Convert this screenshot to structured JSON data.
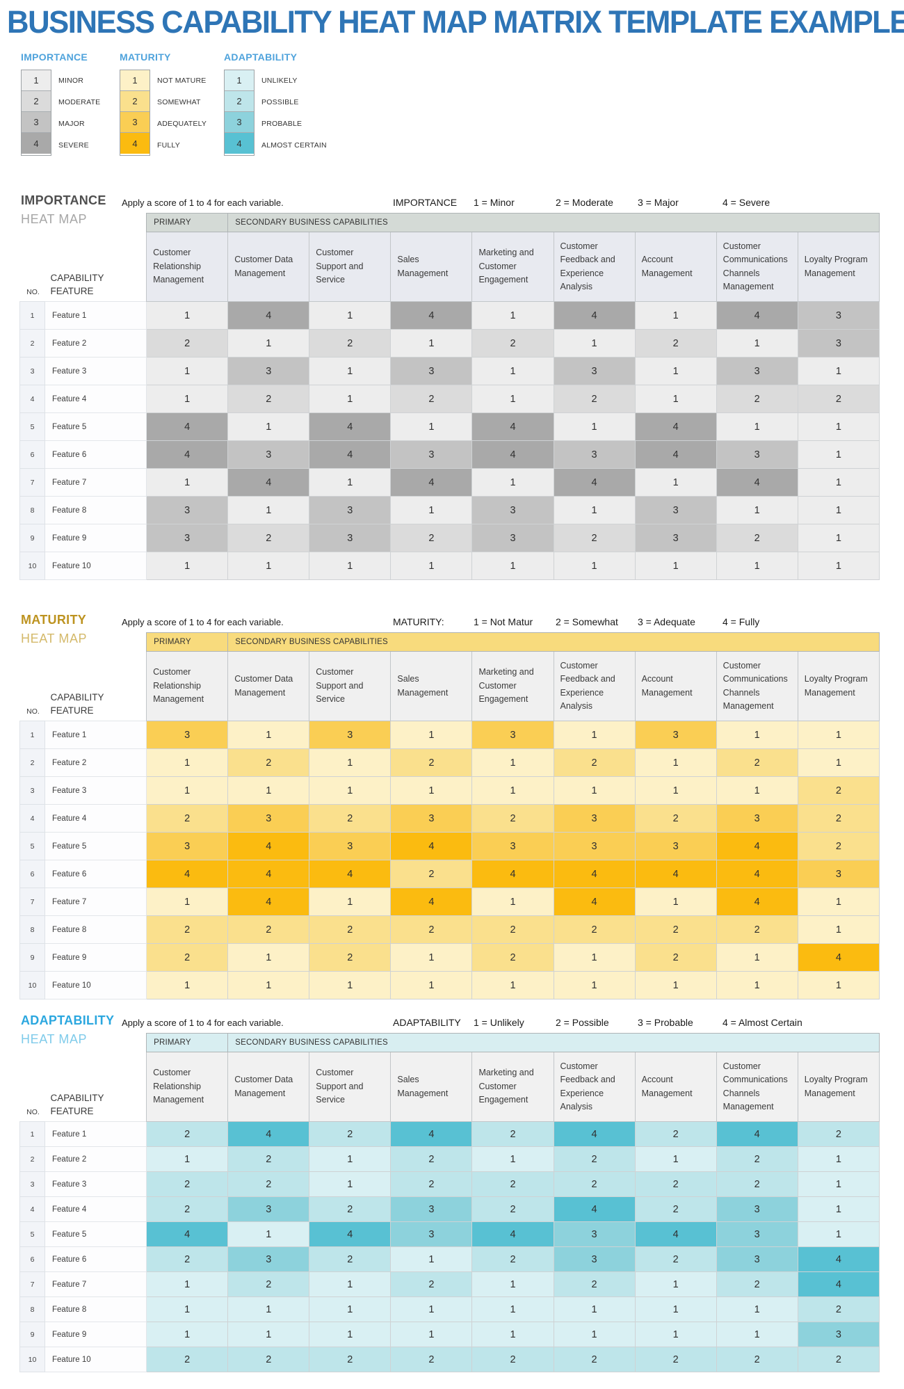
{
  "title": "BUSINESS CAPABILITY HEAT MAP MATRIX TEMPLATE EXAMPLE",
  "legends": [
    {
      "name": "IMPORTANCE",
      "items": [
        {
          "score": "1",
          "label": "MINOR",
          "color": "#EDEDED"
        },
        {
          "score": "2",
          "label": "MODERATE",
          "color": "#DBDBDB"
        },
        {
          "score": "3",
          "label": "MAJOR",
          "color": "#C3C3C3"
        },
        {
          "score": "4",
          "label": "SEVERE",
          "color": "#A9A9A9"
        }
      ]
    },
    {
      "name": "MATURITY",
      "items": [
        {
          "score": "1",
          "label": "NOT MATURE",
          "color": "#FDF1C7"
        },
        {
          "score": "2",
          "label": "SOMEWHAT",
          "color": "#FAE08D"
        },
        {
          "score": "3",
          "label": "ADEQUATELY",
          "color": "#FACE54"
        },
        {
          "score": "4",
          "label": "FULLY",
          "color": "#FBBB10"
        }
      ]
    },
    {
      "name": "ADAPTABILITY",
      "items": [
        {
          "score": "1",
          "label": "UNLIKELY",
          "color": "#D9F0F3"
        },
        {
          "score": "2",
          "label": "POSSIBLE",
          "color": "#BEE5EA"
        },
        {
          "score": "3",
          "label": "PROBABLE",
          "color": "#8DD2DC"
        },
        {
          "score": "4",
          "label": "ALMOST CERTAIN",
          "color": "#58C1D3"
        }
      ]
    }
  ],
  "table": {
    "primary_label": "PRIMARY",
    "secondary_label": "SECONDARY BUSINESS CAPABILITIES",
    "no_label": "NO.",
    "capability_label_line1": "CAPABILITY",
    "capability_label_line2": "FEATURE",
    "columns": [
      "Customer Relationship Management",
      "Customer Data Management",
      "Customer Support and Service",
      "Sales Management",
      "Marketing and Customer Engagement",
      "Customer Feedback and Experience Analysis",
      "Account Management",
      "Customer Communications Channels Management",
      "Loyalty Program Management"
    ]
  },
  "sections": [
    {
      "name": "IMPORTANCE",
      "subtitle": "HEAT MAP",
      "instruction": "Apply a score of 1 to 4 for each variable.",
      "key_label": "IMPORTANCE",
      "key_items": [
        "1 = Minor",
        "2 = Moderate",
        "3 = Major",
        "4 = Severe"
      ],
      "colors": {
        "title": "#4F4F4F",
        "subtitle": "#A6A6A6",
        "band_bg": "#D4DAD6",
        "header_bg": "#E8EAF0",
        "scale": {
          "1": "#EDEDED",
          "2": "#DBDBDB",
          "3": "#C3C3C3",
          "4": "#A9A9A9"
        }
      },
      "rows": [
        {
          "no": "1",
          "feature": "Feature 1",
          "values": [
            1,
            4,
            1,
            4,
            1,
            4,
            1,
            4,
            3
          ]
        },
        {
          "no": "2",
          "feature": "Feature 2",
          "values": [
            2,
            1,
            2,
            1,
            2,
            1,
            2,
            1,
            3
          ]
        },
        {
          "no": "3",
          "feature": "Feature 3",
          "values": [
            1,
            3,
            1,
            3,
            1,
            3,
            1,
            3,
            1
          ]
        },
        {
          "no": "4",
          "feature": "Feature 4",
          "values": [
            1,
            2,
            1,
            2,
            1,
            2,
            1,
            2,
            2
          ]
        },
        {
          "no": "5",
          "feature": "Feature 5",
          "values": [
            4,
            1,
            4,
            1,
            4,
            1,
            4,
            1,
            1
          ]
        },
        {
          "no": "6",
          "feature": "Feature 6",
          "values": [
            4,
            3,
            4,
            3,
            4,
            3,
            4,
            3,
            1
          ]
        },
        {
          "no": "7",
          "feature": "Feature 7",
          "values": [
            1,
            4,
            1,
            4,
            1,
            4,
            1,
            4,
            1
          ]
        },
        {
          "no": "8",
          "feature": "Feature 8",
          "values": [
            3,
            1,
            3,
            1,
            3,
            1,
            3,
            1,
            1
          ]
        },
        {
          "no": "9",
          "feature": "Feature 9",
          "values": [
            3,
            2,
            3,
            2,
            3,
            2,
            3,
            2,
            1
          ]
        },
        {
          "no": "10",
          "feature": "Feature 10",
          "values": [
            1,
            1,
            1,
            1,
            1,
            1,
            1,
            1,
            1
          ]
        }
      ]
    },
    {
      "name": "MATURITY",
      "subtitle": "HEAT MAP",
      "instruction": "Apply a score of 1 to 4 for each variable.",
      "key_label": "MATURITY:",
      "key_items": [
        "1 = Not Matur",
        "2 = Somewhat",
        "3 = Adequate",
        "4 = Fully"
      ],
      "colors": {
        "title": "#BD9320",
        "subtitle": "#D4B96A",
        "band_bg": "#F8DB7D",
        "header_bg": "#F0F0F0",
        "scale": {
          "1": "#FDF1C7",
          "2": "#FAE08D",
          "3": "#FACE54",
          "4": "#FBBB10"
        }
      },
      "rows": [
        {
          "no": "1",
          "feature": "Feature 1",
          "values": [
            3,
            1,
            3,
            1,
            3,
            1,
            3,
            1,
            1
          ]
        },
        {
          "no": "2",
          "feature": "Feature 2",
          "values": [
            1,
            2,
            1,
            2,
            1,
            2,
            1,
            2,
            1
          ]
        },
        {
          "no": "3",
          "feature": "Feature 3",
          "values": [
            1,
            1,
            1,
            1,
            1,
            1,
            1,
            1,
            2
          ]
        },
        {
          "no": "4",
          "feature": "Feature 4",
          "values": [
            2,
            3,
            2,
            3,
            2,
            3,
            2,
            3,
            2
          ]
        },
        {
          "no": "5",
          "feature": "Feature 5",
          "values": [
            3,
            4,
            3,
            4,
            3,
            3,
            3,
            4,
            2
          ]
        },
        {
          "no": "6",
          "feature": "Feature 6",
          "values": [
            4,
            4,
            4,
            2,
            4,
            4,
            4,
            4,
            3
          ]
        },
        {
          "no": "7",
          "feature": "Feature 7",
          "values": [
            1,
            4,
            1,
            4,
            1,
            4,
            1,
            4,
            1
          ]
        },
        {
          "no": "8",
          "feature": "Feature 8",
          "values": [
            2,
            2,
            2,
            2,
            2,
            2,
            2,
            2,
            1
          ]
        },
        {
          "no": "9",
          "feature": "Feature 9",
          "values": [
            2,
            1,
            2,
            1,
            2,
            1,
            2,
            1,
            4
          ]
        },
        {
          "no": "10",
          "feature": "Feature 10",
          "values": [
            1,
            1,
            1,
            1,
            1,
            1,
            1,
            1,
            1
          ]
        }
      ]
    },
    {
      "name": "ADAPTABILITY",
      "subtitle": "HEAT MAP",
      "instruction": "Apply a score of 1 to 4 for each variable.",
      "key_label": "ADAPTABILITY",
      "key_items": [
        "1 = Unlikely",
        "2 = Possible",
        "3 = Probable",
        "4 = Almost Certain"
      ],
      "colors": {
        "title": "#2BA7DF",
        "subtitle": "#7FCBEA",
        "band_bg": "#D8EEF1",
        "header_bg": "#F1F1F1",
        "scale": {
          "1": "#D9F0F3",
          "2": "#BEE5EA",
          "3": "#8DD2DC",
          "4": "#58C1D3"
        }
      },
      "rows": [
        {
          "no": "1",
          "feature": "Feature 1",
          "values": [
            2,
            4,
            2,
            4,
            2,
            4,
            2,
            4,
            2
          ]
        },
        {
          "no": "2",
          "feature": "Feature 2",
          "values": [
            1,
            2,
            1,
            2,
            1,
            2,
            1,
            2,
            1
          ]
        },
        {
          "no": "3",
          "feature": "Feature 3",
          "values": [
            2,
            2,
            1,
            2,
            2,
            2,
            2,
            2,
            1
          ]
        },
        {
          "no": "4",
          "feature": "Feature 4",
          "values": [
            2,
            3,
            2,
            3,
            2,
            4,
            2,
            3,
            1
          ]
        },
        {
          "no": "5",
          "feature": "Feature 5",
          "values": [
            4,
            1,
            4,
            3,
            4,
            3,
            4,
            3,
            1
          ]
        },
        {
          "no": "6",
          "feature": "Feature 6",
          "values": [
            2,
            3,
            2,
            1,
            2,
            3,
            2,
            3,
            4
          ]
        },
        {
          "no": "7",
          "feature": "Feature 7",
          "values": [
            1,
            2,
            1,
            2,
            1,
            2,
            1,
            2,
            4
          ]
        },
        {
          "no": "8",
          "feature": "Feature 8",
          "values": [
            1,
            1,
            1,
            1,
            1,
            1,
            1,
            1,
            2
          ]
        },
        {
          "no": "9",
          "feature": "Feature 9",
          "values": [
            1,
            1,
            1,
            1,
            1,
            1,
            1,
            1,
            3
          ]
        },
        {
          "no": "10",
          "feature": "Feature 10",
          "values": [
            2,
            2,
            2,
            2,
            2,
            2,
            2,
            2,
            2
          ]
        }
      ]
    }
  ]
}
